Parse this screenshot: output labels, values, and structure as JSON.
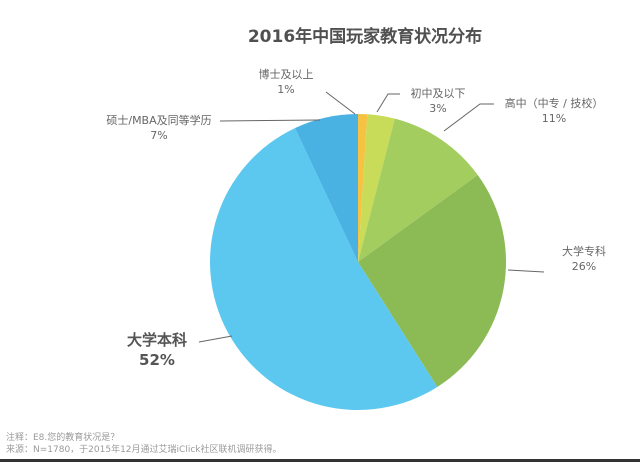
{
  "chart_data": {
    "type": "pie",
    "title": "2016年中国玩家教育状况分布",
    "start_angle": "12 o'clock",
    "direction": "clockwise",
    "slices": [
      {
        "label": "博士及以上",
        "value": 1,
        "pct_label": "1%",
        "color": "#F5C242"
      },
      {
        "label": "初中及以下",
        "value": 3,
        "pct_label": "3%",
        "color": "#C8DC5A"
      },
      {
        "label": "高中（中专 / 技校）",
        "value": 11,
        "pct_label": "11%",
        "color": "#A3CD5F"
      },
      {
        "label": "大学专科",
        "value": 26,
        "pct_label": "26%",
        "color": "#8CBA55"
      },
      {
        "label": "大学本科",
        "value": 52,
        "pct_label": "52%",
        "color": "#5CC8F0"
      },
      {
        "label": "硕士/MBA及同等学历",
        "value": 7,
        "pct_label": "7%",
        "color": "#4AB2E3"
      }
    ]
  },
  "labels": {
    "phd": {
      "name": "博士及以上",
      "pct": "1%"
    },
    "junior": {
      "name": "初中及以下",
      "pct": "3%"
    },
    "high": {
      "name": "高中（中专 / 技校）",
      "pct": "11%"
    },
    "college": {
      "name": "大学专科",
      "pct": "26%"
    },
    "bachelor": {
      "name": "大学本科",
      "pct": "52%"
    },
    "master": {
      "name": "硕士/MBA及同等学历",
      "pct": "7%"
    }
  },
  "footer": {
    "note": "注释：E8.您的教育状况是？",
    "source": "来源：N=1780，于2015年12月通过艾瑞iClick社区联机调研获得。"
  }
}
